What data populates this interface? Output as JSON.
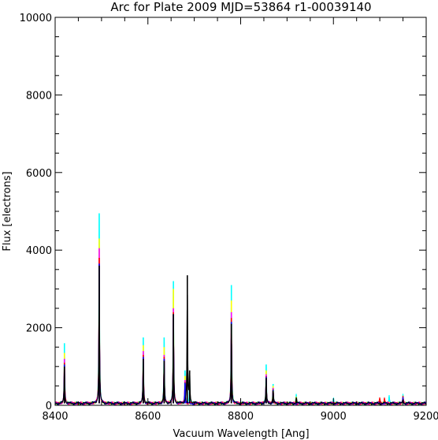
{
  "chart_data": {
    "type": "line",
    "title": "Arc for Plate 2009  MJD=53864  r1-00039140",
    "xlabel": "Vacuum Wavelength [Ang]",
    "ylabel": "Flux [electrons]",
    "xlim": [
      8400,
      9200
    ],
    "ylim": [
      0,
      10000
    ],
    "x_ticks": [
      8400,
      8600,
      8800,
      9000,
      9200
    ],
    "x_tick_labels": [
      "8400",
      "8600",
      "8800",
      "9000",
      "9200"
    ],
    "y_ticks": [
      0,
      2000,
      4000,
      6000,
      8000,
      10000
    ],
    "y_tick_labels": [
      "0",
      "2000",
      "4000",
      "6000",
      "8000",
      "10000"
    ],
    "grid": false,
    "baseline": 50,
    "series": [
      {
        "color": "#00ffff",
        "lines": [
          [
            8420,
            1600
          ],
          [
            8495,
            4950
          ],
          [
            8590,
            1750
          ],
          [
            8635,
            1750
          ],
          [
            8655,
            3200
          ],
          [
            8680,
            900
          ],
          [
            8690,
            700
          ],
          [
            8780,
            3100
          ],
          [
            8855,
            1050
          ],
          [
            8870,
            550
          ],
          [
            8920,
            250
          ],
          [
            9000,
            150
          ],
          [
            9120,
            220
          ],
          [
            9150,
            260
          ]
        ]
      },
      {
        "color": "#ffff00",
        "lines": [
          [
            8420,
            1350
          ],
          [
            8495,
            4300
          ],
          [
            8590,
            1550
          ],
          [
            8635,
            1500
          ],
          [
            8655,
            3000
          ],
          [
            8680,
            750
          ],
          [
            8780,
            2700
          ],
          [
            8855,
            900
          ],
          [
            8870,
            500
          ],
          [
            8920,
            200
          ],
          [
            9150,
            200
          ]
        ]
      },
      {
        "color": "#ff00ff",
        "lines": [
          [
            8420,
            1200
          ],
          [
            8495,
            4050
          ],
          [
            8590,
            1400
          ],
          [
            8635,
            1300
          ],
          [
            8655,
            2500
          ],
          [
            8680,
            650
          ],
          [
            8780,
            2400
          ],
          [
            8855,
            800
          ],
          [
            8870,
            450
          ],
          [
            9150,
            180
          ]
        ]
      },
      {
        "color": "#ff0000",
        "lines": [
          [
            8420,
            1100
          ],
          [
            8495,
            3800
          ],
          [
            8590,
            1300
          ],
          [
            8635,
            1250
          ],
          [
            8655,
            2400
          ],
          [
            8680,
            600
          ],
          [
            8780,
            2250
          ],
          [
            8855,
            750
          ],
          [
            8870,
            420
          ],
          [
            9100,
            160
          ],
          [
            9110,
            170
          ],
          [
            9150,
            170
          ]
        ]
      },
      {
        "color": "#0000ff",
        "lines": [
          [
            8420,
            1050
          ],
          [
            8495,
            3650
          ],
          [
            8590,
            1250
          ],
          [
            8635,
            1200
          ],
          [
            8655,
            2350
          ],
          [
            8680,
            580
          ],
          [
            8780,
            2150
          ],
          [
            8855,
            720
          ],
          [
            8870,
            400
          ],
          [
            9150,
            150
          ]
        ]
      },
      {
        "color": "#000000",
        "lines": [
          [
            8420,
            1000
          ],
          [
            8495,
            3600
          ],
          [
            8590,
            1200
          ],
          [
            8635,
            1150
          ],
          [
            8655,
            2350
          ],
          [
            8685,
            3350
          ],
          [
            8690,
            900
          ],
          [
            8780,
            2100
          ],
          [
            8855,
            700
          ],
          [
            8870,
            380
          ],
          [
            8920,
            150
          ],
          [
            9150,
            130
          ]
        ]
      }
    ]
  }
}
